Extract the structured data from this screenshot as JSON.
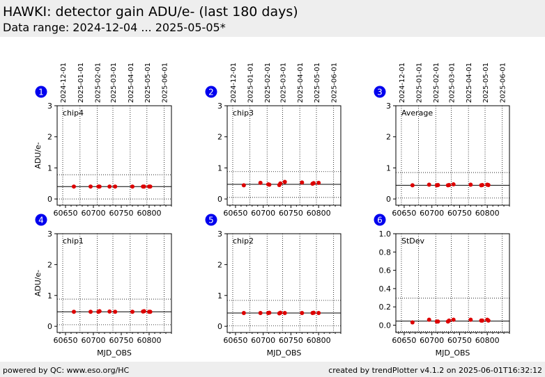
{
  "header": {
    "title": "HAWKI: detector gain ADU/e- (last 180 days)",
    "subtitle": "Data range: 2024-12-04 ... 2025-05-05*"
  },
  "footer": {
    "left": "powered by QC: www.eso.org/HC",
    "right": "created by trendPlotter v4.1.2 on 2025-06-01T16:32:12"
  },
  "chart_data": [
    {
      "id": "1",
      "type": "scatter",
      "label": "chip4",
      "ylabel": "ADU/e-",
      "xlabel": "",
      "xlim": [
        60635,
        60840
      ],
      "ylim": [
        -0.2,
        3
      ],
      "yticks": [
        0,
        1,
        2,
        3
      ],
      "yticklabels": [
        "0",
        "1",
        "2",
        "3"
      ],
      "xticks": [
        60650,
        60700,
        60750,
        60800
      ],
      "xticklabels": [
        "60650",
        "60700",
        "60750",
        "60800"
      ],
      "dateticks": [
        "2024-12-01",
        "2025-01-01",
        "2025-02-01",
        "2025-03-01",
        "2025-04-01",
        "2025-05-01",
        "2025-06-01"
      ],
      "ref": 0.4,
      "limits": [
        0.78,
        0.0
      ],
      "x": [
        60665,
        60695,
        60709,
        60711,
        60729,
        60739,
        60770,
        60789,
        60791,
        60800,
        60802
      ],
      "y": [
        0.4,
        0.4,
        0.4,
        0.4,
        0.4,
        0.4,
        0.4,
        0.4,
        0.4,
        0.4,
        0.4
      ]
    },
    {
      "id": "2",
      "type": "scatter",
      "label": "chip3",
      "ylabel": "",
      "xlabel": "",
      "xlim": [
        60635,
        60840
      ],
      "ylim": [
        -0.2,
        3
      ],
      "yticks": [
        0,
        1,
        2,
        3
      ],
      "yticklabels": [
        "0",
        "1",
        "2",
        "3"
      ],
      "xticks": [
        60650,
        60700,
        60750,
        60800
      ],
      "xticklabels": [
        "60650",
        "60700",
        "60750",
        "60800"
      ],
      "dateticks": [
        "2024-12-01",
        "2025-01-01",
        "2025-02-01",
        "2025-03-01",
        "2025-04-01",
        "2025-05-01",
        "2025-06-01"
      ],
      "ref": 0.47,
      "limits": [
        0.88,
        0.05
      ],
      "x": [
        60665,
        60695,
        60709,
        60711,
        60729,
        60731,
        60739,
        60770,
        60789,
        60791,
        60800
      ],
      "y": [
        0.44,
        0.52,
        0.47,
        0.46,
        0.45,
        0.5,
        0.55,
        0.53,
        0.49,
        0.51,
        0.52
      ]
    },
    {
      "id": "3",
      "type": "scatter",
      "label": "Average",
      "ylabel": "",
      "xlabel": "",
      "xlim": [
        60635,
        60840
      ],
      "ylim": [
        -0.2,
        3
      ],
      "yticks": [
        0,
        1,
        2,
        3
      ],
      "yticklabels": [
        "0",
        "1",
        "2",
        "3"
      ],
      "xticks": [
        60650,
        60700,
        60750,
        60800
      ],
      "xticklabels": [
        "60650",
        "60700",
        "60750",
        "60800"
      ],
      "dateticks": [
        "2024-12-01",
        "2025-01-01",
        "2025-02-01",
        "2025-03-01",
        "2025-04-01",
        "2025-05-01",
        "2025-06-01"
      ],
      "ref": 0.44,
      "limits": [
        0.85,
        0.03
      ],
      "x": [
        60665,
        60695,
        60709,
        60711,
        60729,
        60731,
        60739,
        60770,
        60789,
        60791,
        60800,
        60802
      ],
      "y": [
        0.44,
        0.46,
        0.44,
        0.45,
        0.44,
        0.45,
        0.47,
        0.46,
        0.44,
        0.45,
        0.46,
        0.45
      ]
    },
    {
      "id": "4",
      "type": "scatter",
      "label": "chip1",
      "ylabel": "ADU/e-",
      "xlabel": "MJD_OBS",
      "xlim": [
        60635,
        60840
      ],
      "ylim": [
        -0.2,
        3
      ],
      "yticks": [
        0,
        1,
        2,
        3
      ],
      "yticklabels": [
        "0",
        "1",
        "2",
        "3"
      ],
      "xticks": [
        60650,
        60700,
        60750,
        60800
      ],
      "xticklabels": [
        "60650",
        "60700",
        "60750",
        "60800"
      ],
      "dateticks": [],
      "ref": 0.47,
      "limits": [
        0.88,
        0.05
      ],
      "x": [
        60665,
        60695,
        60709,
        60711,
        60729,
        60739,
        60770,
        60789,
        60791,
        60800,
        60802
      ],
      "y": [
        0.47,
        0.47,
        0.47,
        0.49,
        0.48,
        0.47,
        0.47,
        0.48,
        0.49,
        0.47,
        0.47
      ]
    },
    {
      "id": "5",
      "type": "scatter",
      "label": "chip2",
      "ylabel": "",
      "xlabel": "MJD_OBS",
      "xlim": [
        60635,
        60840
      ],
      "ylim": [
        -0.2,
        3
      ],
      "yticks": [
        0,
        1,
        2,
        3
      ],
      "yticklabels": [
        "0",
        "1",
        "2",
        "3"
      ],
      "xticks": [
        60650,
        60700,
        60750,
        60800
      ],
      "xticklabels": [
        "60650",
        "60700",
        "60750",
        "60800"
      ],
      "dateticks": [],
      "ref": 0.43,
      "limits": [
        0.84,
        0.02
      ],
      "x": [
        60665,
        60695,
        60709,
        60711,
        60729,
        60731,
        60739,
        60770,
        60789,
        60791,
        60800
      ],
      "y": [
        0.43,
        0.43,
        0.43,
        0.44,
        0.42,
        0.44,
        0.43,
        0.43,
        0.43,
        0.44,
        0.43
      ]
    },
    {
      "id": "6",
      "type": "scatter",
      "label": "StDev",
      "ylabel": "",
      "xlabel": "MJD_OBS",
      "xlim": [
        60635,
        60840
      ],
      "ylim": [
        -0.08,
        1.0
      ],
      "yticks": [
        0,
        0.2,
        0.4,
        0.6,
        0.8,
        1.0
      ],
      "yticklabels": [
        "0.0",
        "0.2",
        "0.4",
        "0.6",
        "0.8",
        "1.0"
      ],
      "xticks": [
        60650,
        60700,
        60750,
        60800
      ],
      "xticklabels": [
        "60650",
        "60700",
        "60750",
        "60800"
      ],
      "dateticks": [],
      "ref": 0.045,
      "limits": [
        0.295,
        -0.07
      ],
      "x": [
        60665,
        60695,
        60709,
        60711,
        60729,
        60731,
        60739,
        60770,
        60789,
        60791,
        60800,
        60802
      ],
      "y": [
        0.03,
        0.06,
        0.04,
        0.04,
        0.04,
        0.05,
        0.06,
        0.06,
        0.05,
        0.05,
        0.06,
        0.05
      ]
    }
  ],
  "colors": {
    "point": "#dd0000",
    "badge": "#0000ee",
    "header_bg": "#eeeeee"
  }
}
